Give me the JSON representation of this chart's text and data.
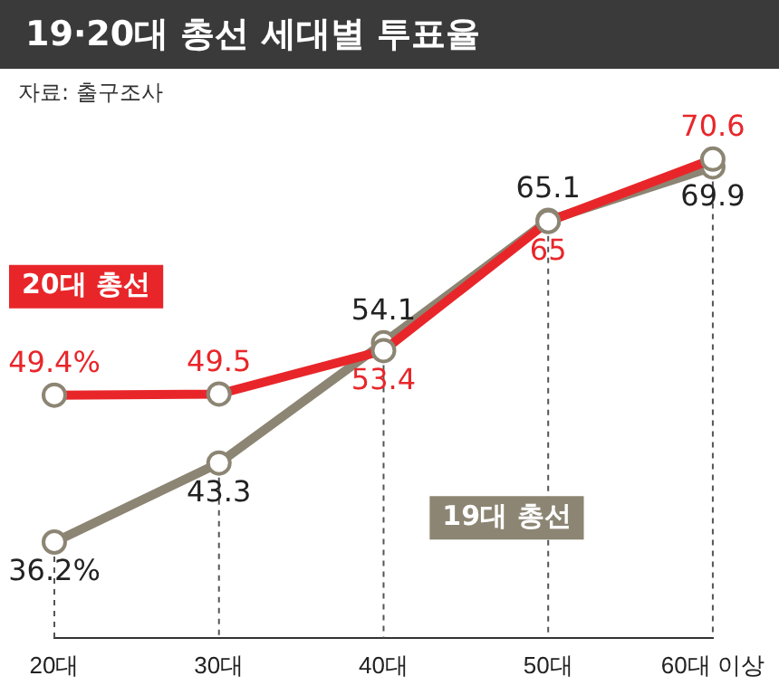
{
  "chart_data": {
    "type": "line",
    "title": "19·20대 총선 세대별 투표율",
    "annotations": [
      "자료: 출구조사"
    ],
    "categories": [
      "20대",
      "30대",
      "40대",
      "50대",
      "60대 이상"
    ],
    "series": [
      {
        "name": "20대 총선",
        "color": "#e8262a",
        "values": [
          49.4,
          49.5,
          53.4,
          65,
          70.6
        ],
        "value_labels": [
          "49.4%",
          "49.5",
          "53.4",
          "65",
          "70.6"
        ]
      },
      {
        "name": "19대 총선",
        "color": "#8c8573",
        "values": [
          36.2,
          43.3,
          54.1,
          65.1,
          69.9
        ],
        "value_labels": [
          "36.2%",
          "43.3",
          "54.1",
          "65.1",
          "69.9"
        ]
      }
    ],
    "marker": "circle",
    "grid": "x",
    "legend": false,
    "tick_labels": "x"
  }
}
